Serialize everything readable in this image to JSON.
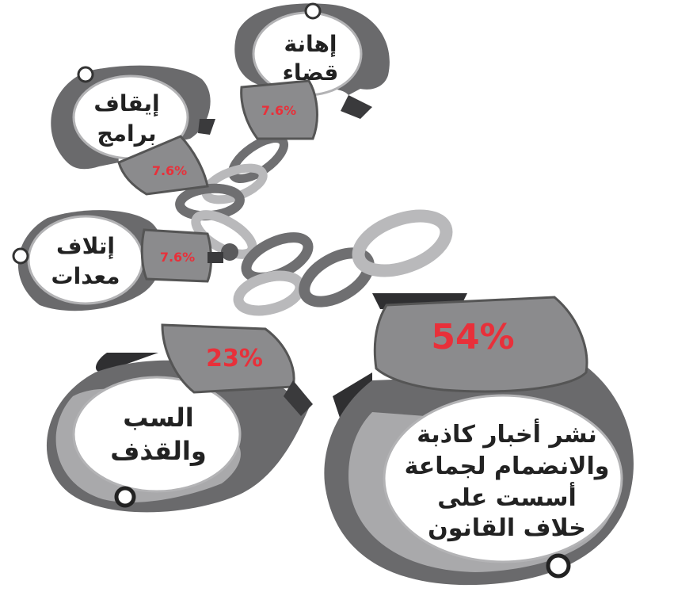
{
  "chart_data": {
    "type": "pie",
    "title": "",
    "colors": {
      "percent": "#e8303a",
      "cuff_dark": "#5f5f61",
      "cuff_mid": "#8a8a8c",
      "cuff_light": "#a9a9ab",
      "chain_dark": "#6f6f71",
      "chain_light": "#b9b9bb"
    },
    "slices": [
      {
        "label_lines": [
          "نشر أخبار كاذبة",
          "والانضمام لجماعة",
          "أسست على",
          "خلاف القانون"
        ],
        "value_label": "54%",
        "value": 54
      },
      {
        "label_lines": [
          "السب",
          "والقذف"
        ],
        "value_label": "23%",
        "value": 23
      },
      {
        "label_lines": [
          "إتلاف",
          "معدات"
        ],
        "value_label": "7.6%",
        "value": 7.6
      },
      {
        "label_lines": [
          "إيقاف",
          "برامج"
        ],
        "value_label": "7.6%",
        "value": 7.6
      },
      {
        "label_lines": [
          "إهانة",
          "قضاء"
        ],
        "value_label": "7.6%",
        "value": 7.6
      }
    ]
  }
}
